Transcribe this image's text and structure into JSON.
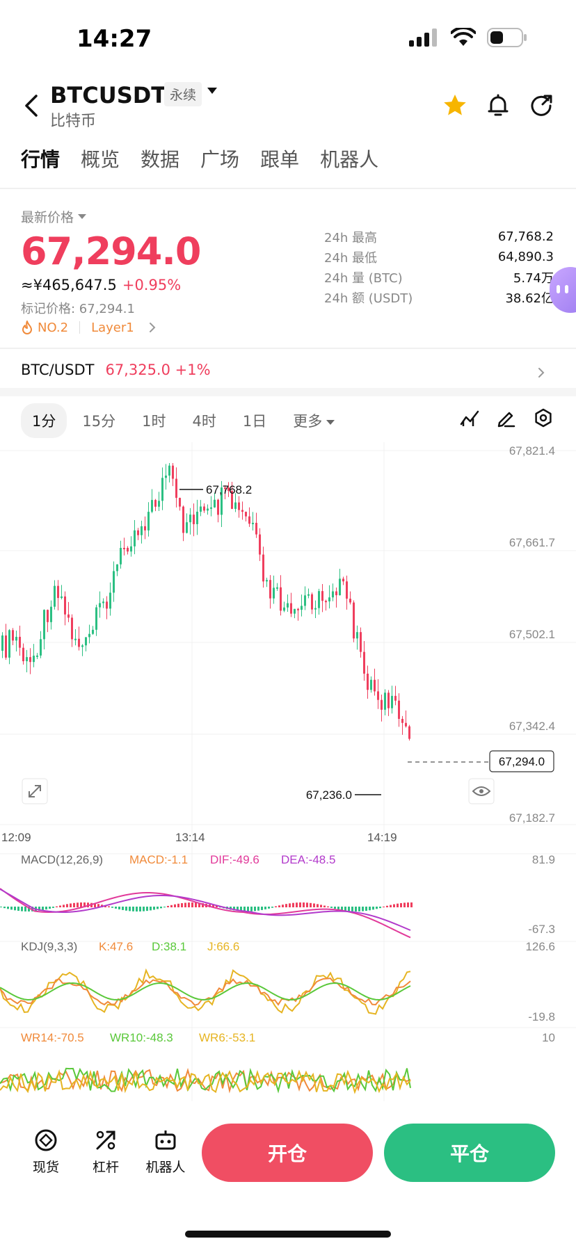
{
  "status": {
    "time": "14:27"
  },
  "header": {
    "symbol": "BTCUSDT",
    "contract_type": "永续",
    "coin_name": "比特币"
  },
  "tabs": [
    "行情",
    "概览",
    "数据",
    "广场",
    "跟单",
    "机器人"
  ],
  "ticker": {
    "last_label": "最新价格",
    "last_price": "67,294.0",
    "cny": "≈¥465,647.5",
    "change": "+0.95%",
    "mark": "标记价格: 67,294.1",
    "rank": "NO.2",
    "sector": "Layer1",
    "stats": [
      {
        "label": "24h  最高",
        "value": "67,768.2"
      },
      {
        "label": "24h  最低",
        "value": "64,890.3"
      },
      {
        "label": "24h  量 (BTC)",
        "value": "5.74万"
      },
      {
        "label": "24h  额 (USDT)",
        "value": "38.62亿"
      }
    ]
  },
  "spot": {
    "pair": "BTC/USDT",
    "price": "67,325.0",
    "change": "+1%"
  },
  "intervals": [
    "1分",
    "15分",
    "1时",
    "4时",
    "1日",
    "更多"
  ],
  "chart": {
    "y_ticks": [
      "67,821.4",
      "67,661.7",
      "67,502.1",
      "67,342.4",
      "67,182.7"
    ],
    "x_ticks": [
      "12:09",
      "13:14",
      "14:19"
    ],
    "high_label": "67,768.2",
    "low_label": "67,236.0",
    "current_label": "67,294.0",
    "up_color": "#2bbf82",
    "down_color": "#ef3e5d"
  },
  "macd": {
    "title": "MACD(12,26,9)",
    "macd": "MACD:-1.1",
    "dif": "DIF:-49.6",
    "dea": "DEA:-48.5",
    "max": "81.9",
    "min": "-67.3"
  },
  "kdj": {
    "title": "KDJ(9,3,3)",
    "k": "K:47.6",
    "d": "D:38.1",
    "j": "J:66.6",
    "max": "126.6",
    "min": "-19.8"
  },
  "wr": {
    "wr14": "WR14:-70.5",
    "wr10": "WR10:-48.3",
    "wr6": "WR6:-53.1",
    "max": "10"
  },
  "bottom": {
    "spot_label": "现货",
    "leverage_label": "杠杆",
    "bot_label": "机器人",
    "open_label": "开仓",
    "close_label": "平仓"
  }
}
